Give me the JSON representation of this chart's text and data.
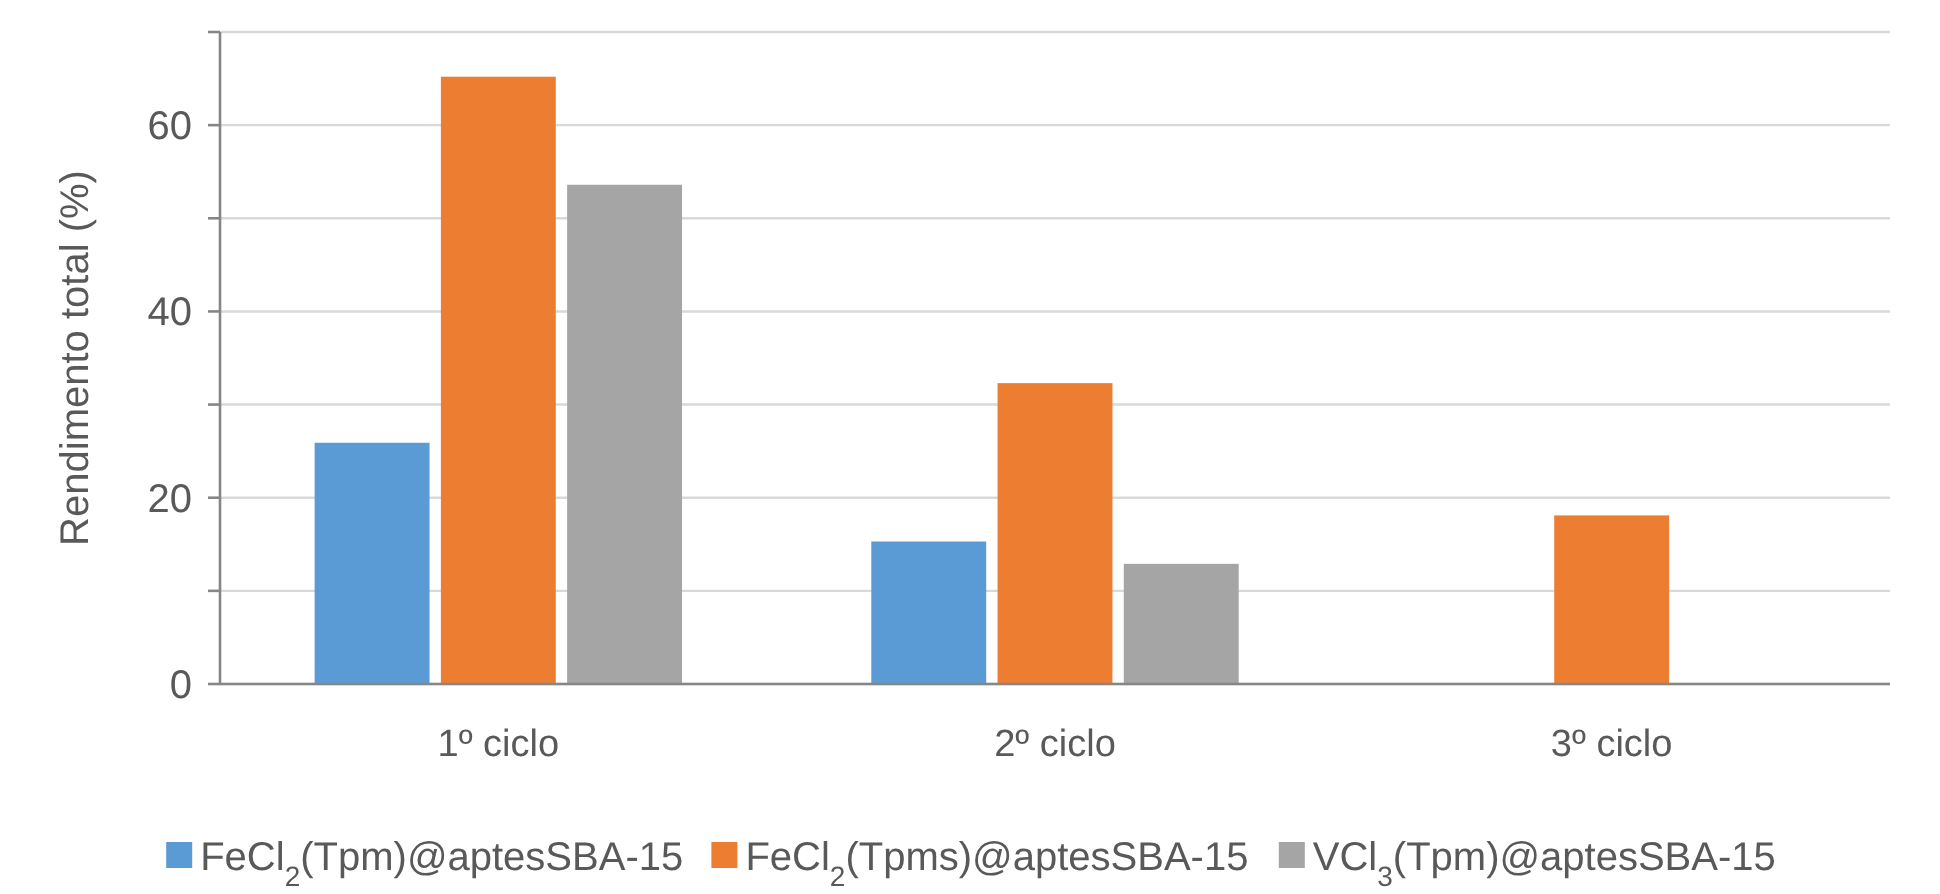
{
  "chart_data": {
    "type": "bar",
    "ylabel": "Rendimento total (%)",
    "categories": [
      "1º ciclo",
      "2º ciclo",
      "3º ciclo"
    ],
    "series": [
      {
        "name": "FeCl$_{2}$(Tpm)@aptesSBA-15",
        "color": "#5b9bd5",
        "values": [
          25.9,
          15.3,
          null
        ]
      },
      {
        "name": "FeCl$_{2}$(Tpms)@aptesSBA-15",
        "color": "#ed7d31",
        "values": [
          65.2,
          32.3,
          18.1
        ]
      },
      {
        "name": "VCl$_{3}$(Tpm)@aptesSBA-15",
        "color": "#a5a5a5",
        "values": [
          53.6,
          12.9,
          null
        ]
      }
    ],
    "ylim": [
      0,
      70
    ],
    "yticks": [
      0,
      {
        "value": 10,
        "label": null
      },
      20,
      {
        "value": 30,
        "label": null
      },
      40,
      {
        "value": 50,
        "label": null
      },
      60,
      {
        "value": 70,
        "label": null
      }
    ],
    "grid": "y",
    "legend": "bottom"
  }
}
